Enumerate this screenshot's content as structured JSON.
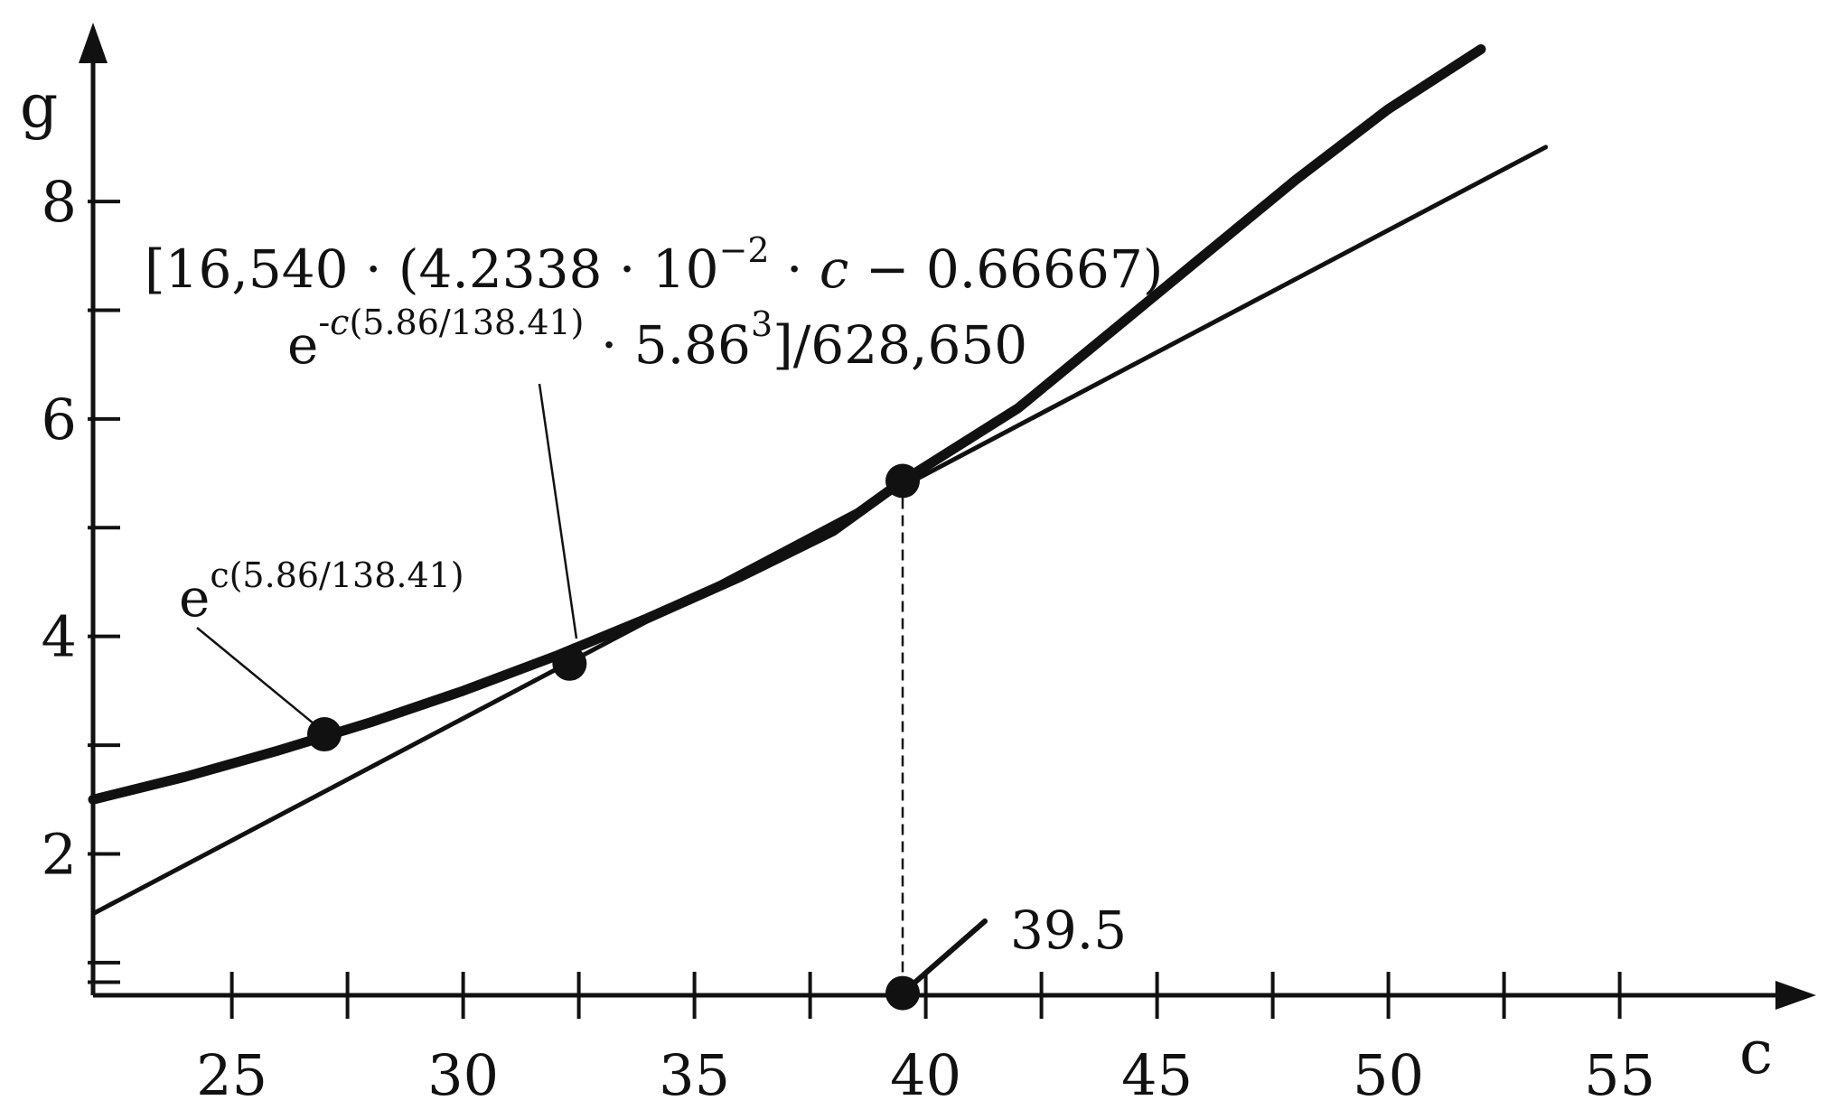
{
  "chart_data": {
    "type": "line",
    "xlabel": "c",
    "ylabel": "g",
    "xlim": [
      22,
      59
    ],
    "ylim": [
      0.7,
      9.5
    ],
    "x_ticks": [
      25,
      30,
      35,
      40,
      45,
      50,
      55
    ],
    "y_ticks": [
      2,
      4,
      6,
      8
    ],
    "grid": false,
    "series": [
      {
        "style": "thick",
        "x": [
          22,
          24,
          26,
          28,
          30,
          32,
          34,
          36,
          38,
          39.5,
          42,
          44,
          46,
          48,
          50,
          52
        ],
        "y": [
          2.5,
          2.71,
          2.95,
          3.21,
          3.5,
          3.82,
          4.17,
          4.55,
          4.97,
          5.43,
          6.1,
          6.8,
          7.5,
          8.2,
          8.85,
          9.4
        ]
      },
      {
        "style": "thin",
        "x": [
          22,
          53.4
        ],
        "y": [
          1.45,
          8.5
        ]
      }
    ],
    "points": [
      {
        "x": 27,
        "y": 3.1
      },
      {
        "x": 32.3,
        "y": 3.75
      },
      {
        "x": 39.5,
        "y": 5.43
      },
      {
        "x": 39.5,
        "y": 0.72
      }
    ],
    "annotations": {
      "curve_label": {
        "base": "e",
        "exponent": "c(5.86/138.41)"
      },
      "tangent_label": {
        "line1_a": "[16,540 · (4.2338 · 10",
        "line1_sup": "−2",
        "line1_b": " · ",
        "line1_var": "c",
        "line1_c": " − 0.66667) ·",
        "line2_base": "e",
        "line2_sup_minus": "-",
        "line2_sup_var": "c",
        "line2_sup_rest": "(5.86/138.41)",
        "line2_mid": " · 5.86",
        "line2_sup3": "3",
        "line2_end": "]/628,650"
      },
      "intersection_value": "39.5"
    }
  }
}
